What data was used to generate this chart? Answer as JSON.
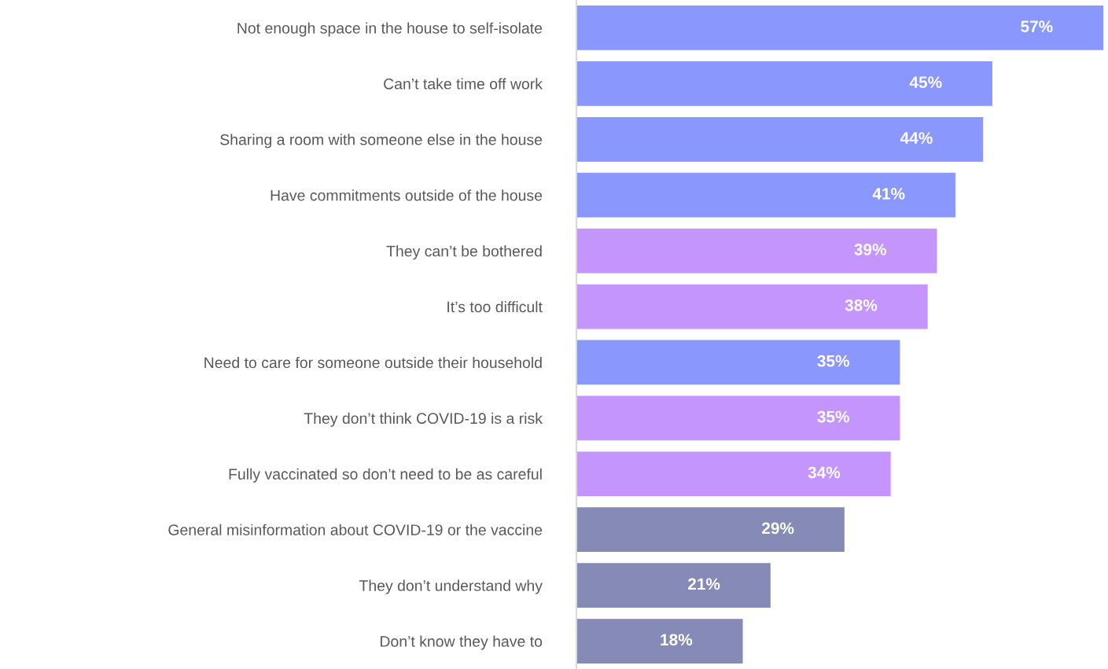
{
  "chart_data": {
    "type": "bar",
    "orientation": "horizontal",
    "data_labels": true,
    "categories": [
      "Not enough space in the house to self-isolate",
      "Can’t take time off work",
      "Sharing a room with someone else in the house",
      "Have commitments outside of the house",
      "They can’t be bothered",
      "It’s too difficult",
      "Need to care for someone outside their household",
      "They don’t think COVID-19 is a risk",
      "Fully vaccinated so don’t need to be as careful",
      "General misinformation about COVID-19 or the vaccine",
      "They don’t understand why",
      "Don’t know they have to"
    ],
    "values": [
      57,
      45,
      44,
      41,
      39,
      38,
      35,
      35,
      34,
      29,
      21,
      18
    ],
    "value_labels": [
      "57%",
      "45%",
      "44%",
      "41%",
      "39%",
      "38%",
      "35%",
      "35%",
      "34%",
      "29%",
      "21%",
      "18%"
    ],
    "colors": [
      "#8a98fe",
      "#8a98fe",
      "#8a98fe",
      "#8a98fe",
      "#c496fd",
      "#c496fd",
      "#8a98fe",
      "#c496fd",
      "#c496fd",
      "#858bb6",
      "#858bb6",
      "#858bb6"
    ]
  }
}
